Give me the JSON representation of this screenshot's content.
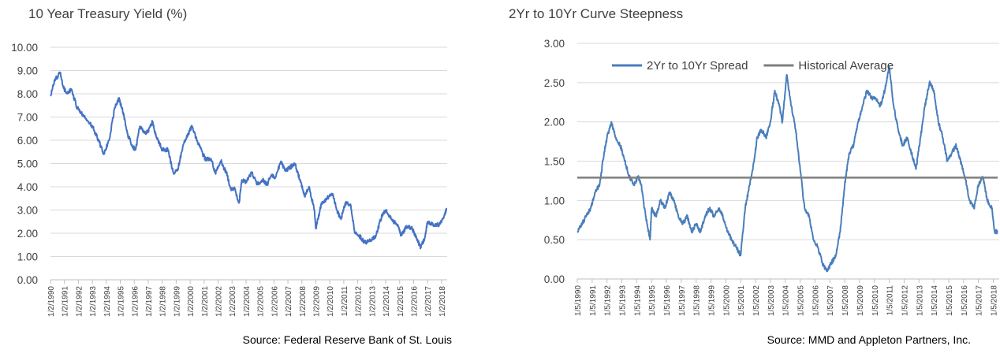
{
  "chart_data": [
    {
      "type": "line",
      "title": "10 Year Treasury Yield (%)",
      "source": "Source: Federal Reserve Bank of St. Louis",
      "ylim": [
        0,
        10
      ],
      "yticks": [
        "0.00",
        "1.00",
        "2.00",
        "3.00",
        "4.00",
        "5.00",
        "6.00",
        "7.00",
        "8.00",
        "9.00",
        "10.00"
      ],
      "xtick_labels": [
        "1/2/1990",
        "1/2/1991",
        "1/2/1992",
        "1/2/1993",
        "1/2/1994",
        "1/2/1995",
        "1/2/1996",
        "1/2/1997",
        "1/2/1998",
        "1/2/1999",
        "1/2/2000",
        "1/2/2001",
        "1/2/2002",
        "1/2/2003",
        "1/2/2004",
        "1/2/2005",
        "1/2/2006",
        "1/2/2007",
        "1/2/2008",
        "1/2/2009",
        "1/2/2010",
        "1/2/2011",
        "1/2/2012",
        "1/2/2013",
        "1/2/2014",
        "1/2/2015",
        "1/2/2016",
        "1/2/2017",
        "1/2/2018"
      ],
      "grid": true,
      "series": [
        {
          "color": "#4472c4",
          "x": [
            1990.0,
            1990.3,
            1990.7,
            1990.9,
            1991.2,
            1991.5,
            1991.9,
            1992.2,
            1992.7,
            1993.0,
            1993.5,
            1993.8,
            1994.2,
            1994.6,
            1994.9,
            1995.2,
            1995.5,
            1995.9,
            1996.1,
            1996.4,
            1996.8,
            1997.0,
            1997.3,
            1997.6,
            1998.0,
            1998.4,
            1998.8,
            1999.1,
            1999.5,
            1999.9,
            2000.1,
            2000.5,
            2000.9,
            2001.1,
            2001.5,
            2001.8,
            2002.2,
            2002.6,
            2002.9,
            2003.2,
            2003.5,
            2003.7,
            2004.0,
            2004.4,
            2004.8,
            2005.2,
            2005.5,
            2005.8,
            2006.1,
            2006.5,
            2006.8,
            2007.1,
            2007.5,
            2007.9,
            2008.2,
            2008.5,
            2008.9,
            2009.0,
            2009.4,
            2009.8,
            2010.2,
            2010.5,
            2010.8,
            2011.1,
            2011.5,
            2011.8,
            2012.1,
            2012.5,
            2012.9,
            2013.3,
            2013.7,
            2014.0,
            2014.4,
            2014.9,
            2015.1,
            2015.5,
            2015.9,
            2016.2,
            2016.5,
            2016.8,
            2017.0,
            2017.5,
            2017.9,
            2018.2,
            2018.35
          ],
          "values": [
            7.9,
            8.6,
            8.9,
            8.3,
            8.0,
            8.2,
            7.4,
            7.2,
            6.8,
            6.6,
            5.9,
            5.4,
            6.0,
            7.4,
            7.8,
            7.2,
            6.3,
            5.7,
            5.6,
            6.6,
            6.3,
            6.4,
            6.8,
            6.1,
            5.6,
            5.6,
            4.6,
            4.7,
            5.8,
            6.3,
            6.6,
            6.0,
            5.4,
            5.2,
            5.2,
            4.6,
            5.1,
            4.6,
            3.9,
            3.9,
            3.3,
            4.3,
            4.2,
            4.6,
            4.1,
            4.3,
            4.1,
            4.5,
            4.4,
            5.1,
            4.7,
            4.8,
            5.0,
            4.2,
            3.6,
            4.0,
            3.0,
            2.2,
            3.3,
            3.5,
            3.7,
            3.0,
            2.6,
            3.3,
            3.2,
            2.0,
            1.9,
            1.6,
            1.7,
            1.9,
            2.7,
            3.0,
            2.6,
            2.3,
            1.9,
            2.3,
            2.2,
            1.8,
            1.4,
            1.8,
            2.5,
            2.3,
            2.4,
            2.8,
            3.0
          ]
        }
      ]
    },
    {
      "type": "line",
      "title": "2Yr to 10Yr Curve Steepness",
      "source": "Source: MMD and Appleton Partners, Inc.",
      "ylim": [
        0,
        3
      ],
      "yticks": [
        "0.00",
        "0.50",
        "1.00",
        "1.50",
        "2.00",
        "2.50",
        "3.00"
      ],
      "xtick_labels": [
        "1/5/1990",
        "1/5/1991",
        "1/5/1992",
        "1/5/1993",
        "1/5/1994",
        "1/5/1995",
        "1/5/1996",
        "1/5/1997",
        "1/5/1998",
        "1/5/1999",
        "1/5/2000",
        "1/5/2001",
        "1/5/2002",
        "1/5/2003",
        "1/5/2004",
        "1/5/2005",
        "1/5/2006",
        "1/5/2007",
        "1/5/2008",
        "1/5/2009",
        "1/5/2010",
        "1/5/2011",
        "1/5/2012",
        "1/5/2013",
        "1/5/2014",
        "1/5/2015",
        "1/5/2016",
        "1/5/2017",
        "1/5/2018"
      ],
      "legend": "top",
      "grid": true,
      "series": [
        {
          "name": "2Yr to 10Yr Spread",
          "color": "#4a7ebb",
          "x": [
            1990.0,
            1990.3,
            1990.6,
            1990.9,
            1991.2,
            1991.5,
            1991.8,
            1992.0,
            1992.3,
            1992.6,
            1992.9,
            1993.2,
            1993.5,
            1993.8,
            1994.1,
            1994.3,
            1994.6,
            1994.9,
            1995.0,
            1995.3,
            1995.6,
            1995.9,
            1996.2,
            1996.5,
            1996.8,
            1997.1,
            1997.4,
            1997.7,
            1998.0,
            1998.3,
            1998.6,
            1998.9,
            1999.2,
            1999.5,
            1999.8,
            2000.1,
            2000.4,
            2000.7,
            2001.0,
            2001.3,
            2001.6,
            2001.9,
            2002.1,
            2002.4,
            2002.7,
            2003.0,
            2003.3,
            2003.6,
            2003.8,
            2004.1,
            2004.4,
            2004.7,
            2005.0,
            2005.3,
            2005.6,
            2005.9,
            2006.2,
            2006.5,
            2006.8,
            2007.1,
            2007.4,
            2007.7,
            2008.0,
            2008.3,
            2008.6,
            2008.9,
            2009.2,
            2009.5,
            2009.8,
            2010.1,
            2010.4,
            2010.7,
            2011.0,
            2011.3,
            2011.6,
            2011.9,
            2012.2,
            2012.5,
            2012.8,
            2013.1,
            2013.4,
            2013.7,
            2014.0,
            2014.3,
            2014.6,
            2014.9,
            2015.2,
            2015.5,
            2015.8,
            2016.1,
            2016.4,
            2016.7,
            2017.0,
            2017.3,
            2017.6,
            2017.9,
            2018.1,
            2018.3
          ],
          "values": [
            0.6,
            0.7,
            0.8,
            0.9,
            1.1,
            1.2,
            1.6,
            1.8,
            2.0,
            1.8,
            1.7,
            1.5,
            1.3,
            1.2,
            1.3,
            1.2,
            0.8,
            0.5,
            0.9,
            0.8,
            1.0,
            0.9,
            1.1,
            1.0,
            0.8,
            0.7,
            0.8,
            0.6,
            0.7,
            0.6,
            0.8,
            0.9,
            0.8,
            0.9,
            0.8,
            0.6,
            0.5,
            0.4,
            0.3,
            0.9,
            1.2,
            1.5,
            1.8,
            1.9,
            1.8,
            2.0,
            2.4,
            2.2,
            2.0,
            2.6,
            2.2,
            1.9,
            1.4,
            0.9,
            0.8,
            0.5,
            0.4,
            0.2,
            0.1,
            0.2,
            0.3,
            0.6,
            1.2,
            1.6,
            1.7,
            2.0,
            2.2,
            2.4,
            2.3,
            2.3,
            2.2,
            2.4,
            2.7,
            2.2,
            1.9,
            1.7,
            1.8,
            1.6,
            1.4,
            1.8,
            2.2,
            2.5,
            2.4,
            2.0,
            1.8,
            1.5,
            1.6,
            1.7,
            1.5,
            1.3,
            1.0,
            0.9,
            1.2,
            1.3,
            1.0,
            0.9,
            0.6,
            0.6
          ]
        },
        {
          "name": "Historical Average",
          "color": "#7f7f7f",
          "x": [
            1990.0,
            2018.3
          ],
          "values": [
            1.29,
            1.29
          ]
        }
      ]
    }
  ]
}
